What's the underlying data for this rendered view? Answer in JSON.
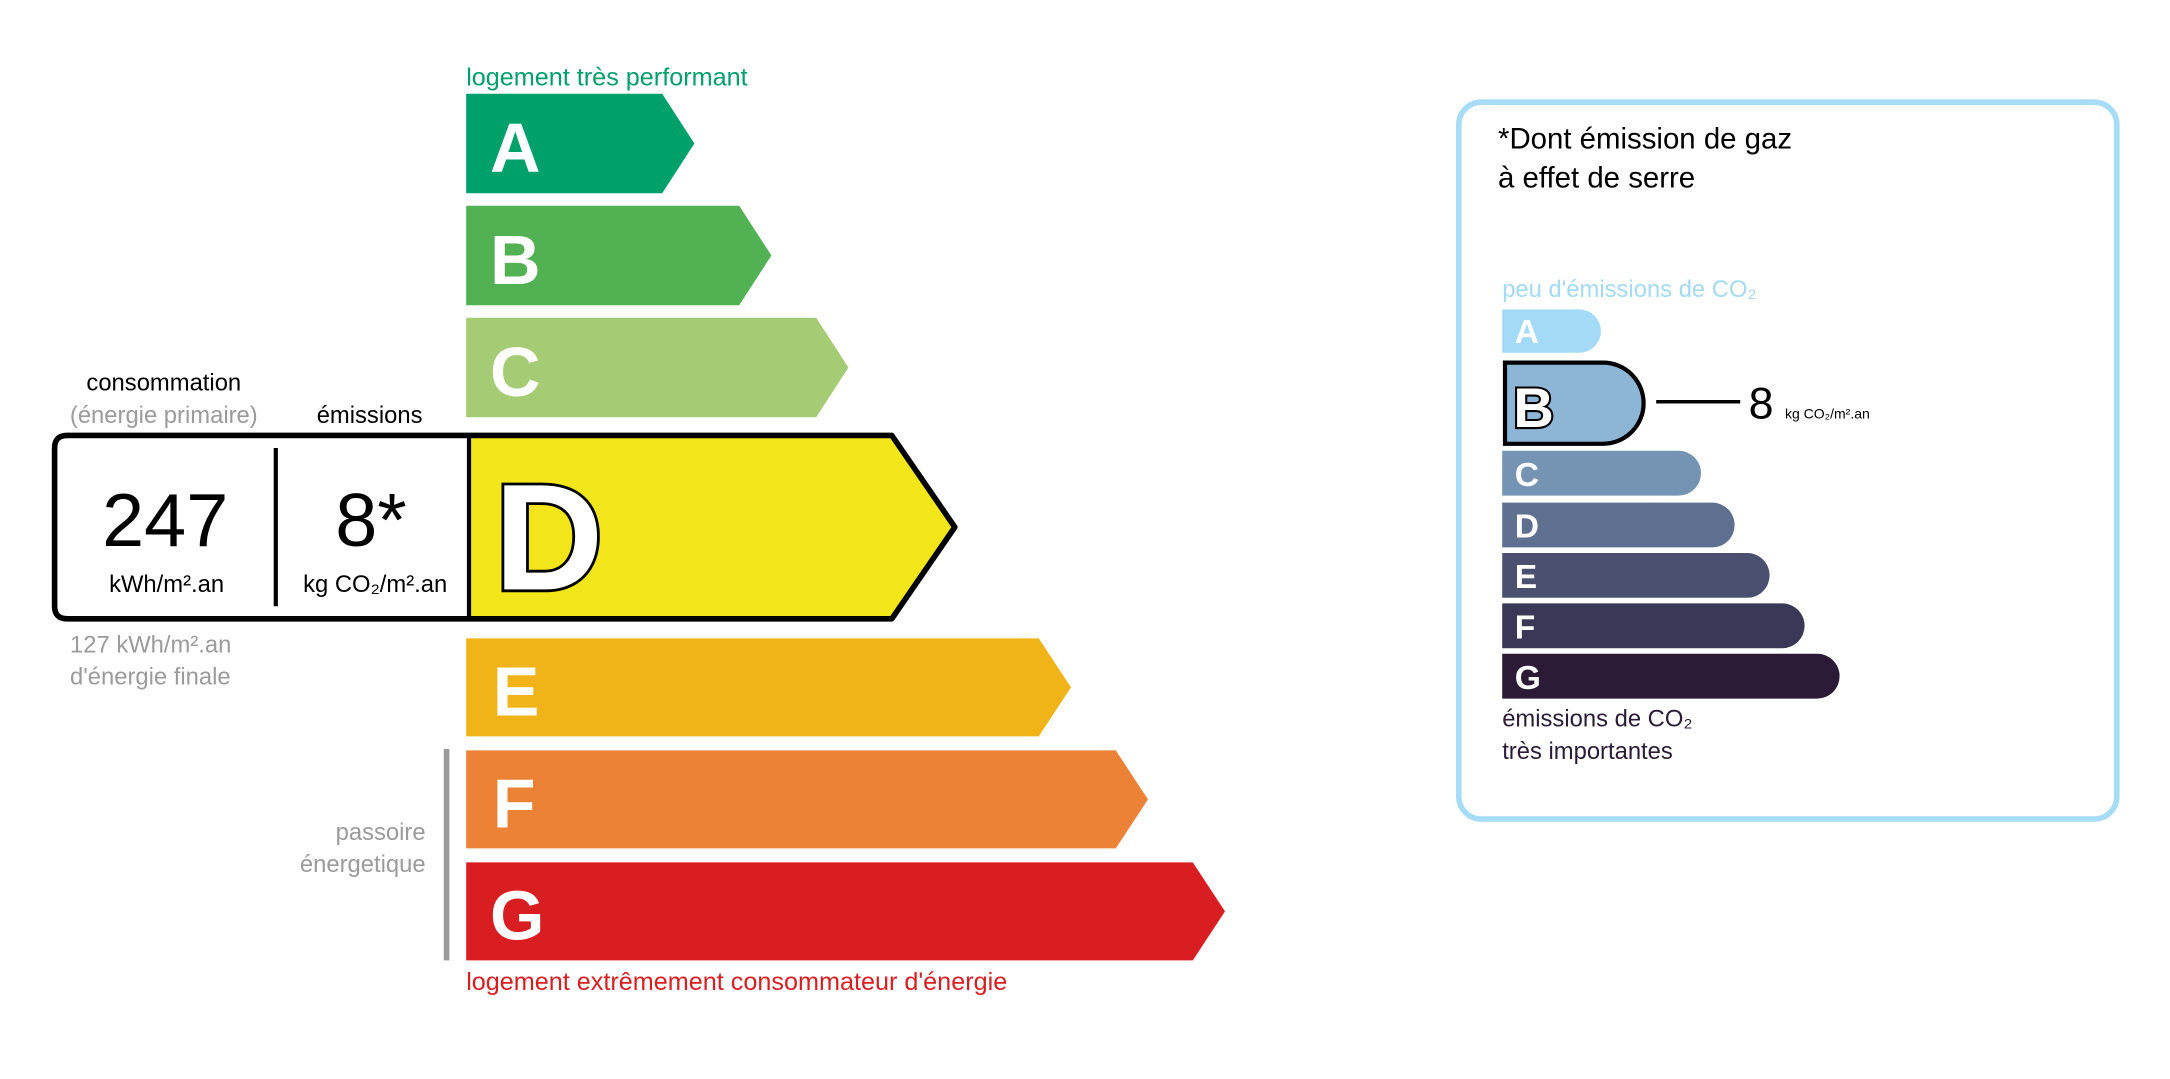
{
  "energy_label": {
    "top_caption": "logement très performant",
    "bottom_caption": "logement extrêmement consommateur d'énergie",
    "consumption_label": "consommation",
    "consumption_sublabel": "(énergie primaire)",
    "emissions_label": "émissions",
    "consumption_value": "247",
    "consumption_unit": "kWh/m².an",
    "emissions_value": "8*",
    "emissions_unit": "kg CO₂/m².an",
    "final_energy_line1": "127 kWh/m².an",
    "final_energy_line2": "d'énergie finale",
    "passoire_line1": "passoire",
    "passoire_line2": "énergetique",
    "current_class": "D",
    "classes": [
      {
        "letter": "A",
        "color": "#00a06a"
      },
      {
        "letter": "B",
        "color": "#52b153"
      },
      {
        "letter": "C",
        "color": "#a5cc74"
      },
      {
        "letter": "D",
        "color": "#f2e61b"
      },
      {
        "letter": "E",
        "color": "#f0b418"
      },
      {
        "letter": "F",
        "color": "#eb8235"
      },
      {
        "letter": "G",
        "color": "#d81e20"
      }
    ]
  },
  "ghg_panel": {
    "title_line1": "*Dont émission de gaz",
    "title_line2": "à effet de serre",
    "top_caption": "peu d'émissions de CO₂",
    "bottom_line1": "émissions de CO₂",
    "bottom_line2": "très importantes",
    "current_class": "B",
    "value": "8",
    "unit": "kg CO₂/m².an",
    "border_color": "#a6dcf6",
    "classes": [
      {
        "letter": "A",
        "color": "#a4daf7"
      },
      {
        "letter": "B",
        "color": "#8db5d5"
      },
      {
        "letter": "C",
        "color": "#7593b3"
      },
      {
        "letter": "D",
        "color": "#5e6f90"
      },
      {
        "letter": "E",
        "color": "#4c5070"
      },
      {
        "letter": "F",
        "color": "#3a3856"
      },
      {
        "letter": "G",
        "color": "#2b1b37"
      }
    ]
  }
}
